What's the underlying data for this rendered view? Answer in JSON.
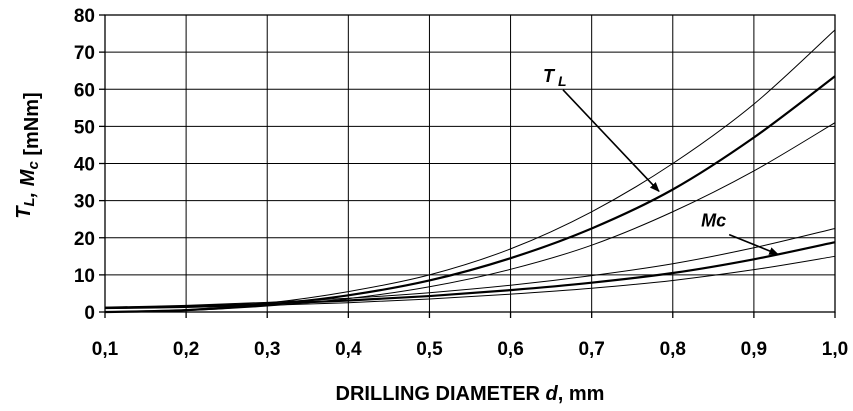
{
  "chart_data": {
    "type": "line",
    "xlabel": "DRILLING DIAMETER d, mm",
    "ylabel_parts": [
      "T",
      "L",
      ", M",
      "c",
      " [mNm]"
    ],
    "xlim": [
      0.1,
      1.0
    ],
    "ylim": [
      0,
      80
    ],
    "x_ticks": [
      0.1,
      0.2,
      0.3,
      0.4,
      0.5,
      0.6,
      0.7,
      0.8,
      0.9,
      1.0
    ],
    "x_tick_labels": [
      "0,1",
      "0,2",
      "0,3",
      "0,4",
      "0,5",
      "0,6",
      "0,7",
      "0,8",
      "0,9",
      "1,0"
    ],
    "y_ticks": [
      0,
      10,
      20,
      30,
      40,
      50,
      60,
      70,
      80
    ],
    "y_tick_labels": [
      "0",
      "10",
      "20",
      "30",
      "40",
      "50",
      "60",
      "70",
      "80"
    ],
    "grid": true,
    "x": [
      0.1,
      0.2,
      0.3,
      0.4,
      0.5,
      0.6,
      0.7,
      0.8,
      0.9,
      1.0
    ],
    "series": [
      {
        "group": "TL",
        "style": "thin",
        "values": [
          0,
          0.6,
          2.4,
          5.5,
          10.0,
          17.0,
          27.0,
          40.0,
          56.0,
          76.0
        ]
      },
      {
        "group": "TL",
        "style": "thick",
        "values": [
          0,
          0.5,
          2.0,
          4.5,
          8.5,
          14.5,
          22.5,
          33.0,
          47.0,
          63.5
        ]
      },
      {
        "group": "TL",
        "style": "thin",
        "values": [
          0,
          0.4,
          1.6,
          3.6,
          6.8,
          11.5,
          18.0,
          27.0,
          38.0,
          51.0
        ]
      },
      {
        "group": "Mc",
        "style": "thin",
        "values": [
          1.3,
          1.8,
          2.6,
          3.7,
          5.2,
          7.2,
          9.8,
          13.0,
          17.3,
          22.5
        ]
      },
      {
        "group": "Mc",
        "style": "thick",
        "values": [
          1.1,
          1.5,
          2.2,
          3.1,
          4.3,
          5.9,
          7.9,
          10.5,
          14.2,
          18.8
        ]
      },
      {
        "group": "Mc",
        "style": "thin",
        "values": [
          0.9,
          1.2,
          1.8,
          2.5,
          3.5,
          4.8,
          6.4,
          8.5,
          11.4,
          15.0
        ]
      }
    ],
    "annotations": [
      {
        "group": "TL",
        "label": "T",
        "subscript": "L",
        "text_at": [
          0.64,
          62
        ],
        "arrow_to": [
          0.783,
          32.5
        ]
      },
      {
        "group": "Mc",
        "label": "Mc",
        "subscript": "",
        "text_at": [
          0.835,
          23
        ],
        "arrow_to": [
          0.93,
          15.5
        ]
      }
    ]
  }
}
